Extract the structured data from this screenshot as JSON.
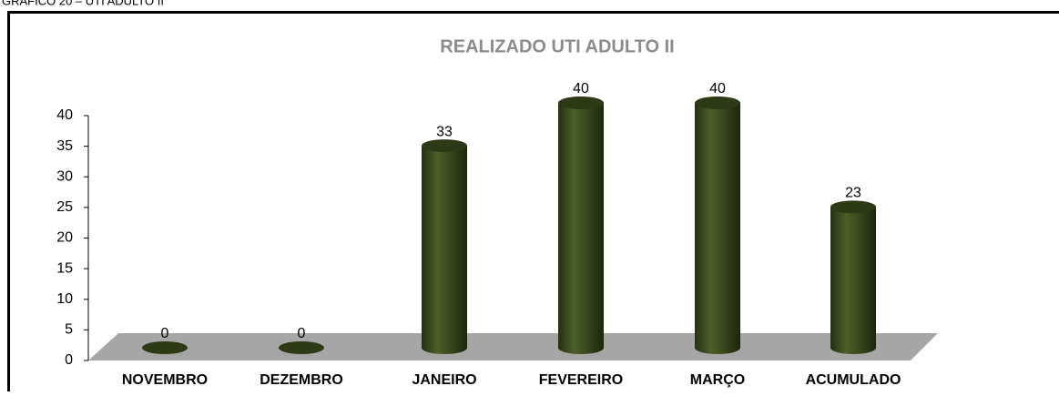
{
  "caption": "GRÁFICO 20 – UTI ADULTO II",
  "chart_data": {
    "type": "bar",
    "title": "REALIZADO UTI ADULTO II",
    "categories": [
      "NOVEMBRO",
      "DEZEMBRO",
      "JANEIRO",
      "FEVEREIRO",
      "MARÇO",
      "ACUMULADO"
    ],
    "values": [
      0,
      0,
      33,
      40,
      40,
      23
    ],
    "color": "#3b4a1e",
    "ylim": [
      0,
      40
    ],
    "yticks": [
      0,
      5,
      10,
      15,
      20,
      25,
      30,
      35,
      40
    ],
    "grid": false
  }
}
